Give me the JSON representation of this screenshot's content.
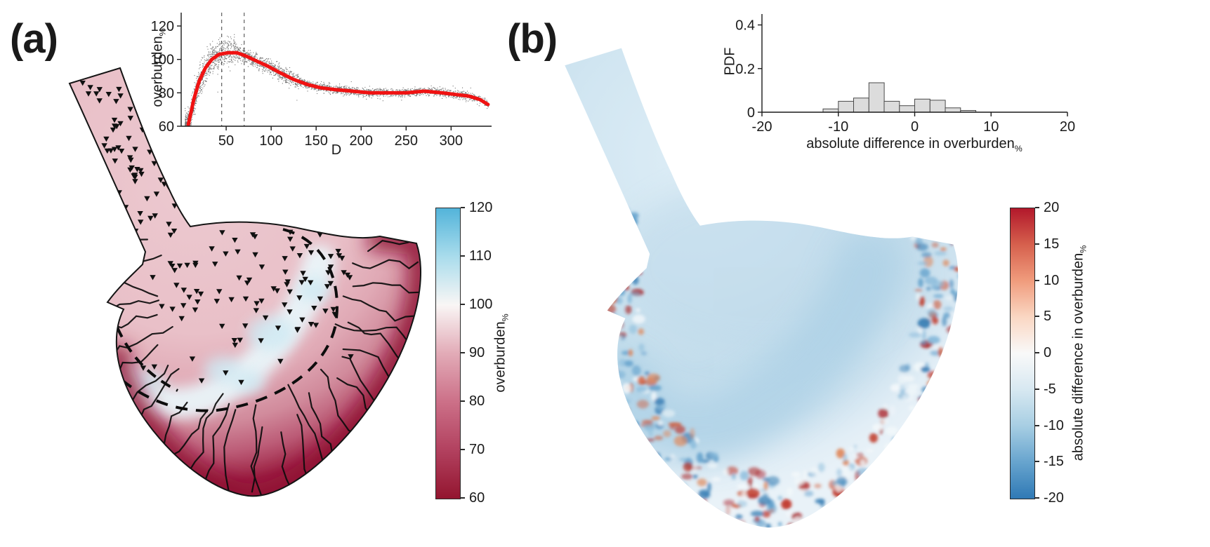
{
  "panels": {
    "a": {
      "label": "(a)"
    },
    "b": {
      "label": "(b)"
    }
  },
  "chart_data": [
    {
      "id": "overburden-vs-distance-scatter",
      "panel": "a",
      "type": "scatter",
      "xlabel": "D",
      "ylabel": "overburden",
      "ylabel_sub": "%",
      "xlim": [
        0,
        345
      ],
      "ylim": [
        60,
        128
      ],
      "xticks": [
        50,
        100,
        150,
        200,
        250,
        300
      ],
      "yticks": [
        60,
        80,
        100,
        120
      ],
      "dashed_vlines_x": [
        45,
        70
      ],
      "scatter_point_count": 3200,
      "scatter_color": "#000000",
      "fit_curve_color": "#f01212",
      "fit_curve": [
        [
          8,
          61
        ],
        [
          14,
          76
        ],
        [
          20,
          87
        ],
        [
          27,
          95
        ],
        [
          34,
          100
        ],
        [
          42,
          103
        ],
        [
          52,
          104
        ],
        [
          62,
          104
        ],
        [
          72,
          102
        ],
        [
          84,
          99
        ],
        [
          96,
          96
        ],
        [
          110,
          92
        ],
        [
          125,
          88
        ],
        [
          140,
          85
        ],
        [
          155,
          83
        ],
        [
          170,
          82
        ],
        [
          190,
          81
        ],
        [
          210,
          80
        ],
        [
          230,
          80
        ],
        [
          250,
          80
        ],
        [
          270,
          81
        ],
        [
          290,
          80
        ],
        [
          305,
          79
        ],
        [
          320,
          78
        ],
        [
          332,
          76
        ],
        [
          341,
          73
        ]
      ]
    },
    {
      "id": "absolute-difference-pdf-histogram",
      "panel": "b",
      "type": "bar",
      "xlabel": "absolute difference in overburden",
      "xlabel_sub": "%",
      "ylabel": "PDF",
      "xlim": [
        -20,
        20
      ],
      "ylim": [
        0,
        0.45
      ],
      "xticks": [
        -20,
        -10,
        0,
        10,
        20
      ],
      "yticks": [
        0,
        0.2,
        0.4
      ],
      "bin_width": 2,
      "bar_face_color": "#dcdcdc",
      "bar_edge_color": "#4a4a4a",
      "bins": [
        {
          "left": -12,
          "pdf": 0.015
        },
        {
          "left": -10,
          "pdf": 0.05
        },
        {
          "left": -8,
          "pdf": 0.065
        },
        {
          "left": -6,
          "pdf": 0.135
        },
        {
          "left": -4,
          "pdf": 0.05
        },
        {
          "left": -2,
          "pdf": 0.03
        },
        {
          "left": 0,
          "pdf": 0.06
        },
        {
          "left": 2,
          "pdf": 0.055
        },
        {
          "left": 4,
          "pdf": 0.02
        },
        {
          "left": 6,
          "pdf": 0.008
        }
      ]
    },
    {
      "id": "overburden-colorbar",
      "panel": "a",
      "type": "colorbar",
      "label": "overburden",
      "label_sub": "%",
      "min": 60,
      "max": 120,
      "ticks": [
        120,
        110,
        100,
        90,
        80,
        70,
        60
      ],
      "stops": [
        {
          "v": 120,
          "c": "#53b4da"
        },
        {
          "v": 110,
          "c": "#a9dcec"
        },
        {
          "v": 100,
          "c": "#f9f6f5"
        },
        {
          "v": 90,
          "c": "#e2abb7"
        },
        {
          "v": 80,
          "c": "#cc7088"
        },
        {
          "v": 70,
          "c": "#b2415f"
        },
        {
          "v": 60,
          "c": "#93152f"
        }
      ]
    },
    {
      "id": "absolute-difference-colorbar",
      "panel": "b",
      "type": "colorbar",
      "label": "absolute difference in overburden",
      "label_sub": "%",
      "min": -20,
      "max": 20,
      "ticks": [
        20,
        15,
        10,
        5,
        0,
        -5,
        -10,
        -15,
        -20
      ],
      "stops": [
        {
          "v": 20,
          "c": "#b2182b"
        },
        {
          "v": 15,
          "c": "#d6604d"
        },
        {
          "v": 10,
          "c": "#f09c7d"
        },
        {
          "v": 5,
          "c": "#fad7c3"
        },
        {
          "v": 0,
          "c": "#f9f9f9"
        },
        {
          "v": -5,
          "c": "#d7e8f1"
        },
        {
          "v": -10,
          "c": "#a7cee3"
        },
        {
          "v": -15,
          "c": "#67a4ce"
        },
        {
          "v": -20,
          "c": "#2f79b5"
        }
      ]
    }
  ],
  "maps": {
    "a": {
      "name": "overburden map",
      "marker_shape": "triangle-down",
      "marker_color": "#101010",
      "outline_color": "#141414",
      "body_color": "#e7bcc6",
      "rim_color": "#8e1130",
      "band_color": "#e9f5f9",
      "dash_color": "#0d0d0d",
      "channel_color": "#0d0d0d"
    },
    "b": {
      "name": "absolute difference map",
      "body_color": "#cfe4f0",
      "band_color": "#aed1e6",
      "speckle_red_colors": [
        "#bf3222",
        "#d05c3b",
        "#a81c1f",
        "#e08a5e"
      ],
      "speckle_blue_colors": [
        "#5b9cc9",
        "#3a7fb5",
        "#86b9da"
      ],
      "speckle_light_color": "#f2f7fa"
    }
  }
}
